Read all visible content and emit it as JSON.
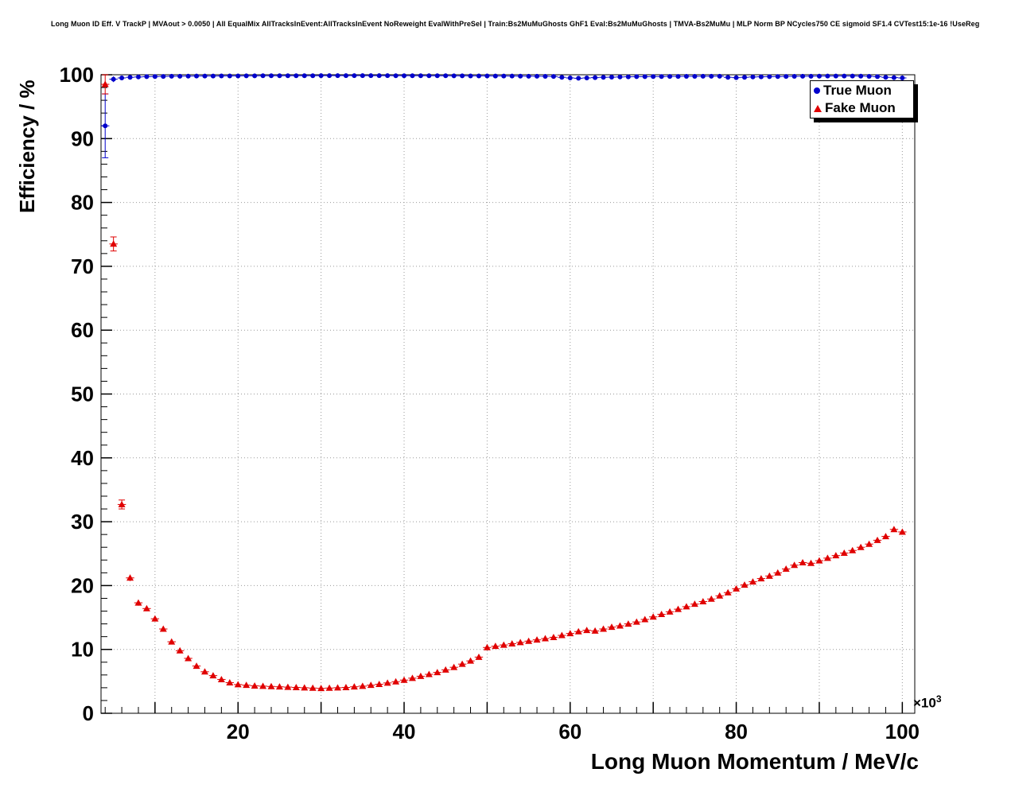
{
  "header": {
    "title": "Long Muon ID Eff. V TrackP | MVAout > 0.0050 | All EqualMix AllTracksInEvent:AllTracksInEvent NoReweight EvalWithPreSel | Train:Bs2MuMuGhosts GhF1 Eval:Bs2MuMuGhosts | TMVA-Bs2MuMu | MLP Norm BP NCycles750 CE sigmoid SF1.4 CVTest15:1e-16 !UseReg"
  },
  "chart_data": {
    "type": "scatter",
    "xlabel": "Long Muon Momentum / MeV/c",
    "ylabel": "Efficiency / %",
    "x_axis": {
      "lim": [
        3.5,
        101.5
      ],
      "unit_scale": 1000,
      "exponent_base": "×10",
      "exponent_power": "3",
      "labeled_ticks": [
        20,
        40,
        60,
        80,
        100
      ],
      "major_tick_step": 10,
      "minor_tick_step": 2
    },
    "y_axis": {
      "lim": [
        0,
        100
      ],
      "labeled_ticks": [
        0,
        10,
        20,
        30,
        40,
        50,
        60,
        70,
        80,
        90,
        100
      ],
      "major_tick_step": 10,
      "minor_tick_step": 2
    },
    "grid": {
      "on": true,
      "style": "dotted",
      "color": "#999999",
      "x_step": 10,
      "y_step": 10
    },
    "legend": {
      "position": "top-right",
      "entries": [
        {
          "label": "True Muon",
          "marker": "circle",
          "color": "#0000cc"
        },
        {
          "label": "Fake Muon",
          "marker": "triangle",
          "color": "#e00000"
        }
      ]
    },
    "x": [
      4,
      5,
      6,
      7,
      8,
      9,
      10,
      11,
      12,
      13,
      14,
      15,
      16,
      17,
      18,
      19,
      20,
      21,
      22,
      23,
      24,
      25,
      26,
      27,
      28,
      29,
      30,
      31,
      32,
      33,
      34,
      35,
      36,
      37,
      38,
      39,
      40,
      41,
      42,
      43,
      44,
      45,
      46,
      47,
      48,
      49,
      50,
      51,
      52,
      53,
      54,
      55,
      56,
      57,
      58,
      59,
      60,
      61,
      62,
      63,
      64,
      65,
      66,
      67,
      68,
      69,
      70,
      71,
      72,
      73,
      74,
      75,
      76,
      77,
      78,
      79,
      80,
      81,
      82,
      83,
      84,
      85,
      86,
      87,
      88,
      89,
      90,
      91,
      92,
      93,
      94,
      95,
      96,
      97,
      98,
      99,
      100
    ],
    "series": [
      {
        "name": "True Muon",
        "marker": "circle",
        "color": "#0000cc",
        "y": [
          92.0,
          99.3,
          99.5,
          99.6,
          99.65,
          99.7,
          99.72,
          99.74,
          99.76,
          99.77,
          99.78,
          99.79,
          99.8,
          99.8,
          99.81,
          99.82,
          99.82,
          99.83,
          99.83,
          99.84,
          99.84,
          99.84,
          99.85,
          99.85,
          99.85,
          99.85,
          99.86,
          99.86,
          99.86,
          99.86,
          99.86,
          99.86,
          99.86,
          99.86,
          99.86,
          99.85,
          99.85,
          99.85,
          99.85,
          99.84,
          99.84,
          99.84,
          99.83,
          99.83,
          99.82,
          99.82,
          99.81,
          99.8,
          99.8,
          99.79,
          99.78,
          99.77,
          99.76,
          99.75,
          99.73,
          99.6,
          99.5,
          99.45,
          99.5,
          99.55,
          99.6,
          99.62,
          99.65,
          99.68,
          99.7,
          99.7,
          99.72,
          99.72,
          99.74,
          99.74,
          99.75,
          99.75,
          99.76,
          99.76,
          99.77,
          99.6,
          99.55,
          99.6,
          99.65,
          99.68,
          99.7,
          99.72,
          99.74,
          99.75,
          99.76,
          99.77,
          99.78,
          99.79,
          99.8,
          99.8,
          99.8,
          99.78,
          99.75,
          99.7,
          99.6,
          99.55,
          99.5
        ],
        "yerr": {
          "head": [
            5.0,
            0.45,
            0.35,
            0.3
          ],
          "default": 0.1
        },
        "xerr_halfwidth": 0.5
      },
      {
        "name": "Fake Muon",
        "marker": "triangle",
        "color": "#e00000",
        "y": [
          98.5,
          73.5,
          32.7,
          21.2,
          17.3,
          16.4,
          14.8,
          13.2,
          11.2,
          9.8,
          8.6,
          7.4,
          6.5,
          5.9,
          5.3,
          4.8,
          4.5,
          4.4,
          4.3,
          4.25,
          4.2,
          4.15,
          4.1,
          4.05,
          4.0,
          3.95,
          3.9,
          3.95,
          4.0,
          4.05,
          4.15,
          4.25,
          4.4,
          4.55,
          4.75,
          4.95,
          5.2,
          5.5,
          5.8,
          6.1,
          6.4,
          6.8,
          7.2,
          7.7,
          8.2,
          8.8,
          10.3,
          10.5,
          10.7,
          10.9,
          11.1,
          11.3,
          11.5,
          11.7,
          11.9,
          12.2,
          12.5,
          12.8,
          13.0,
          12.9,
          13.2,
          13.5,
          13.7,
          14.0,
          14.3,
          14.7,
          15.1,
          15.5,
          15.9,
          16.3,
          16.7,
          17.1,
          17.5,
          17.9,
          18.4,
          18.9,
          19.5,
          20.1,
          20.6,
          21.1,
          21.5,
          22.0,
          22.6,
          23.2,
          23.6,
          23.5,
          23.9,
          24.3,
          24.7,
          25.1,
          25.5,
          26.0,
          26.5,
          27.1,
          27.7,
          28.8,
          28.4
        ],
        "yerr": {
          "head": [
            1.5,
            1.1,
            0.7,
            0.5,
            0.45,
            0.4,
            0.38,
            0.36,
            0.34,
            0.32
          ],
          "default": 0.25
        },
        "xerr_halfwidth": 0.5
      }
    ]
  }
}
